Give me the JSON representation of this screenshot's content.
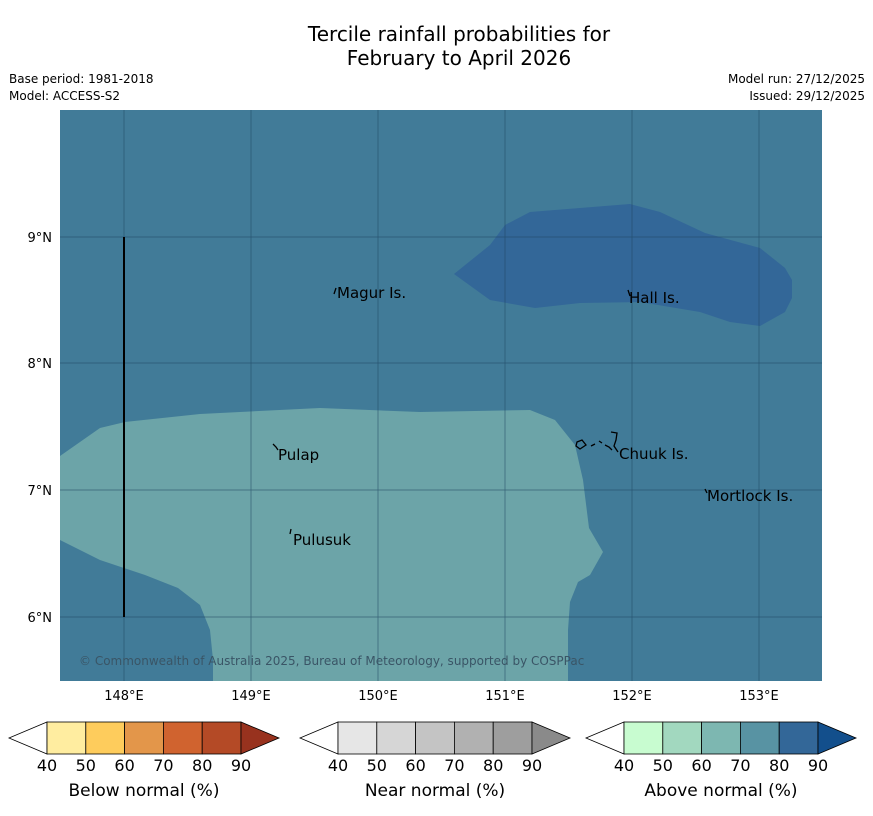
{
  "title": {
    "line1": "Tercile rainfall probabilities for",
    "line2": "February to April 2026"
  },
  "meta": {
    "base_period": "Base period: 1981-2018",
    "model": "Model: ACCESS-S2",
    "model_run": "Model run: 27/12/2025",
    "issued": "Issued: 29/12/2025"
  },
  "map": {
    "lon_ticks": [
      "148°E",
      "149°E",
      "150°E",
      "151°E",
      "152°E",
      "153°E"
    ],
    "lat_ticks": [
      "9°N",
      "8°N",
      "7°N",
      "6°N"
    ],
    "places": {
      "magur": "Magur Is.",
      "hall": "Hall Is.",
      "pulap": "Pulap",
      "chuuk": "Chuuk Is.",
      "mortlock": "Mortlock Is.",
      "pulusuk": "Pulusuk"
    },
    "copyright": "© Commonwealth of Australia 2025, Bureau of Meteorology, supported by COSPPac",
    "colors": {
      "above_70": "#417b98",
      "above_80": "#336798",
      "near_70": "#6ca4a8"
    }
  },
  "legend": {
    "below": {
      "label": "Below normal (%)",
      "ticks": [
        "40",
        "50",
        "60",
        "70",
        "80",
        "90"
      ],
      "colors": [
        "#ffffff",
        "#ffeda0",
        "#fecc5c",
        "#e3964a",
        "#d0632f",
        "#b44a26",
        "#98321e"
      ]
    },
    "near": {
      "label": "Near normal (%)",
      "ticks": [
        "40",
        "50",
        "60",
        "70",
        "80",
        "90"
      ],
      "colors": [
        "#ffffff",
        "#e6e6e6",
        "#d6d6d6",
        "#c4c4c4",
        "#b1b1b1",
        "#9e9e9e",
        "#8a8a8a"
      ]
    },
    "above": {
      "label": "Above normal (%)",
      "ticks": [
        "40",
        "50",
        "60",
        "70",
        "80",
        "90"
      ],
      "colors": [
        "#ffffff",
        "#c8fcd0",
        "#a2d8bf",
        "#7db7b1",
        "#5893a3",
        "#336798",
        "#134f8c"
      ]
    }
  }
}
